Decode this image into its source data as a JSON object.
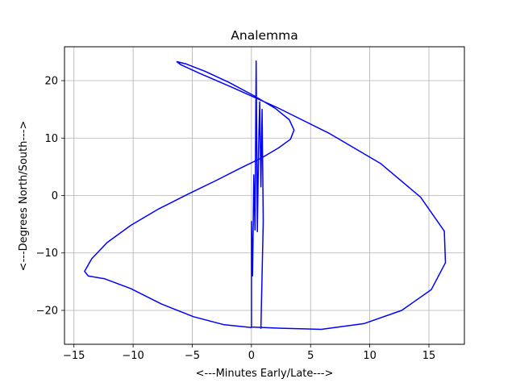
{
  "chart_data": {
    "type": "line",
    "title": "Analemma",
    "xlabel": "<---Minutes Early/Late--->",
    "ylabel": "<---Degrees North/South--->",
    "xlim": [
      -15.8,
      18.0
    ],
    "ylim": [
      -25.9,
      25.9
    ],
    "xticks": [
      -15,
      -10,
      -5,
      0,
      5,
      10,
      15
    ],
    "yticks": [
      -20,
      -10,
      0,
      10,
      20
    ],
    "grid": true,
    "legend": "none",
    "series": [
      {
        "color": "#0000ff",
        "x": [
          0.0,
          -2.3,
          -4.9,
          -7.6,
          -10.2,
          -12.4,
          -13.8,
          -14.1,
          -13.5,
          -12.2,
          -10.2,
          -7.9,
          -5.4,
          -3.0,
          -0.9,
          0.9,
          2.3,
          3.3,
          3.6,
          3.2,
          2.0,
          0.2,
          -1.9,
          -3.9,
          -5.5,
          -6.3,
          -6.0,
          -4.4,
          -1.6,
          2.2,
          6.6,
          10.9,
          14.3,
          16.3,
          16.4,
          15.2,
          12.7,
          9.5,
          5.9,
          2.5,
          0.0,
          0.0,
          0.1,
          0.2,
          0.3,
          0.4,
          0.5,
          0.6,
          0.7,
          0.8,
          0.9,
          1.0,
          0.8
        ],
        "y": [
          -23.0,
          -22.5,
          -21.1,
          -18.9,
          -16.2,
          -14.5,
          -14.0,
          -13.2,
          -11.0,
          -8.2,
          -5.2,
          -2.4,
          0.2,
          2.6,
          4.8,
          6.6,
          8.3,
          9.8,
          11.4,
          13.2,
          15.2,
          17.4,
          19.7,
          21.6,
          22.9,
          23.3,
          22.8,
          21.3,
          18.8,
          15.3,
          10.8,
          5.6,
          -0.3,
          -6.2,
          -11.7,
          -16.4,
          -20.0,
          -22.3,
          -23.3,
          -23.1,
          -22.9,
          -4.5,
          -14.0,
          3.6,
          -6.0,
          23.4,
          -6.3,
          8.0,
          16.3,
          1.5,
          15.0,
          -4.5,
          -23.2
        ]
      }
    ]
  }
}
